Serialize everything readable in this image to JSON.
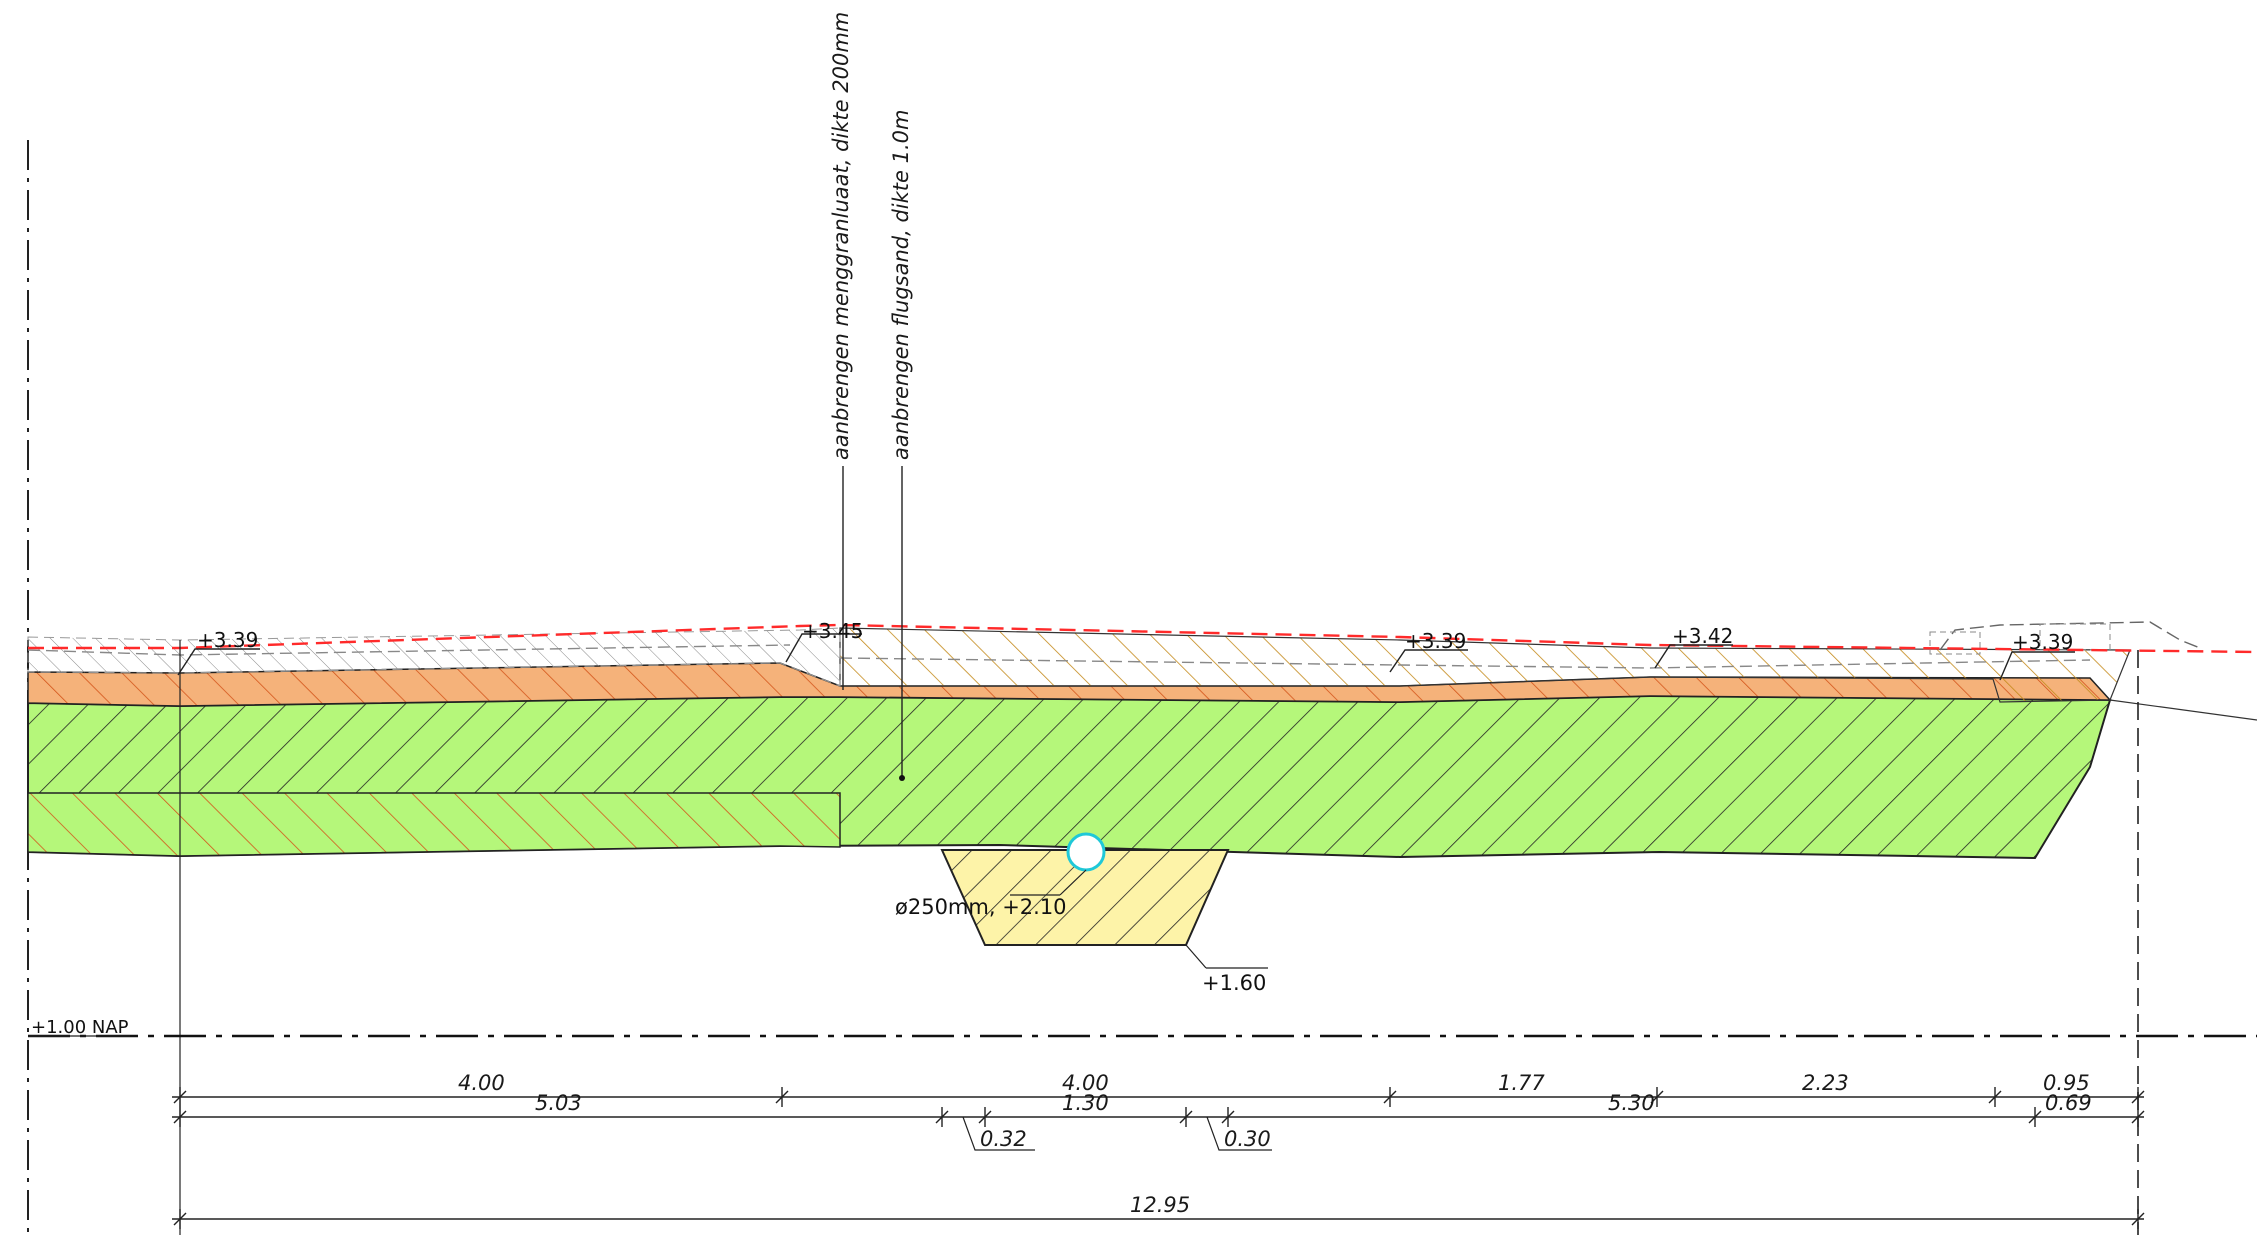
{
  "annotations": {
    "top_layer": "aanbrengen menggranluaat, dikte 200mm",
    "sand_layer": "aanbrengen flugsand, dikte 1.0m"
  },
  "levels": {
    "left": "+3.39",
    "crown": "+3.45",
    "mid": "+3.39",
    "right_mid": "+3.42",
    "right": "+3.39",
    "trench_bottom": "+1.60",
    "nap": "+1.00 NAP"
  },
  "pipe": {
    "label": "ø250mm,  +2.10"
  },
  "dimensions": {
    "row1": [
      "4.00",
      "4.00",
      "1.77",
      "2.23",
      "0.95"
    ],
    "row2": [
      "5.03",
      "0.32",
      "1.30",
      "0.30",
      "5.30",
      "0.69"
    ],
    "total": "12.95"
  },
  "colors": {
    "sand_layer": "#b5f77a",
    "top_layer": "#f5b27a",
    "trench_fill": "#fdf3a8",
    "design_line": "#ff2a2a",
    "pipe": "#1fc8d8"
  }
}
